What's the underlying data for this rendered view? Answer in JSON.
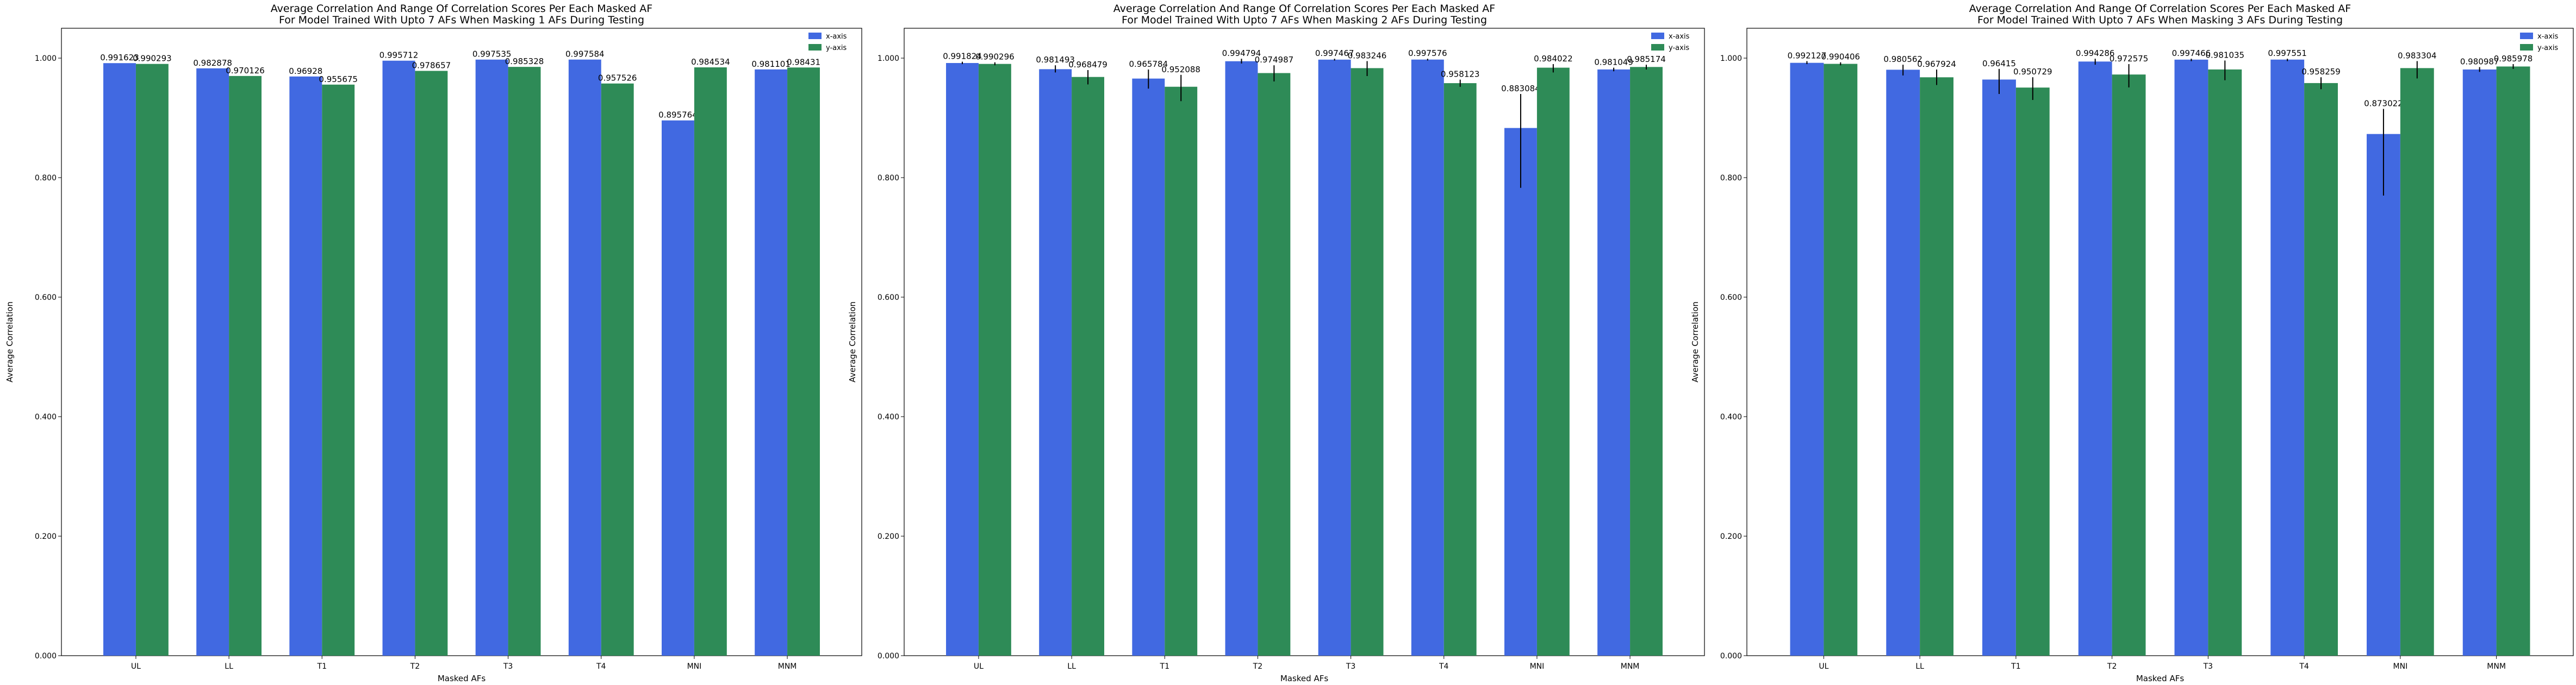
{
  "chart_data": [
    {
      "type": "bar",
      "title": [
        "Average Correlation And Range Of Correlation Scores Per Each Masked AF",
        "For Model Trained With Upto 7 AFs When Masking 1 AFs During Testing"
      ],
      "xlabel": "Masked AFs",
      "ylabel": "Average Correlation",
      "ylim": [
        0,
        1.05
      ],
      "yticks": [
        "0.000",
        "0.200",
        "0.400",
        "0.600",
        "0.800",
        "1.000"
      ],
      "ytick_values": [
        0,
        0.2,
        0.4,
        0.6,
        0.8,
        1.0
      ],
      "legend_position": "top-right",
      "categories": [
        "UL",
        "LL",
        "T1",
        "T2",
        "T3",
        "T4",
        "MNI",
        "MNM"
      ],
      "series": [
        {
          "name": "x-axis",
          "color": "#4169e1",
          "values": [
            0.991623,
            0.982878,
            0.96928,
            0.995712,
            0.997535,
            0.997584,
            0.895764,
            0.981101
          ],
          "labels": [
            "0.991623",
            "0.982878",
            "0.96928",
            "0.995712",
            "0.997535",
            "0.997584",
            "0.895764",
            "0.981101"
          ],
          "err_low": [
            0.991623,
            0.982878,
            0.96928,
            0.995712,
            0.997535,
            0.997584,
            0.895764,
            0.981101
          ],
          "err_high": [
            0.991623,
            0.982878,
            0.96928,
            0.995712,
            0.997535,
            0.997584,
            0.895764,
            0.981101
          ]
        },
        {
          "name": "y-axis",
          "color": "#2e8b57",
          "values": [
            0.990293,
            0.970126,
            0.955675,
            0.978657,
            0.985328,
            0.957526,
            0.984534,
            0.98431
          ],
          "labels": [
            "0.990293",
            "0.970126",
            "0.955675",
            "0.978657",
            "0.985328",
            "0.957526",
            "0.984534",
            "0.98431"
          ],
          "err_low": [
            0.990293,
            0.970126,
            0.955675,
            0.978657,
            0.985328,
            0.957526,
            0.984534,
            0.98431
          ],
          "err_high": [
            0.990293,
            0.970126,
            0.955675,
            0.978657,
            0.985328,
            0.957526,
            0.984534,
            0.98431
          ]
        }
      ]
    },
    {
      "type": "bar",
      "title": [
        "Average Correlation And Range Of Correlation Scores Per Each Masked AF",
        "For Model Trained With Upto 7 AFs When Masking 2 AFs During Testing"
      ],
      "xlabel": "Masked AFs",
      "ylabel": "Average Correlation",
      "ylim": [
        0,
        1.05
      ],
      "yticks": [
        "0.000",
        "0.200",
        "0.400",
        "0.600",
        "0.800",
        "1.000"
      ],
      "ytick_values": [
        0,
        0.2,
        0.4,
        0.6,
        0.8,
        1.0
      ],
      "legend_position": "top-right",
      "categories": [
        "UL",
        "LL",
        "T1",
        "T2",
        "T3",
        "T4",
        "MNI",
        "MNM"
      ],
      "series": [
        {
          "name": "x-axis",
          "color": "#4169e1",
          "values": [
            0.991824,
            0.981493,
            0.965784,
            0.994794,
            0.997467,
            0.997576,
            0.883084,
            0.981049
          ],
          "labels": [
            "0.991824",
            "0.981493",
            "0.965784",
            "0.994794",
            "0.997467",
            "0.997576",
            "0.883084",
            "0.981049"
          ],
          "err_low": [
            0.99,
            0.976,
            0.949,
            0.991,
            0.996,
            0.996,
            0.783,
            0.978
          ],
          "err_high": [
            0.994,
            0.988,
            0.981,
            0.999,
            0.999,
            0.999,
            0.94,
            0.984
          ]
        },
        {
          "name": "y-axis",
          "color": "#2e8b57",
          "values": [
            0.990296,
            0.968479,
            0.952088,
            0.974987,
            0.983246,
            0.958123,
            0.984022,
            0.985174
          ],
          "labels": [
            "0.990296",
            "0.968479",
            "0.952088",
            "0.974987",
            "0.983246",
            "0.958123",
            "0.984022",
            "0.985174"
          ],
          "err_low": [
            0.988,
            0.956,
            0.928,
            0.961,
            0.97,
            0.952,
            0.976,
            0.981
          ],
          "err_high": [
            0.993,
            0.98,
            0.972,
            0.988,
            0.995,
            0.964,
            0.99,
            0.989
          ]
        }
      ]
    },
    {
      "type": "bar",
      "title": [
        "Average Correlation And Range Of Correlation Scores Per Each Masked AF",
        "For Model Trained With Upto 7 AFs When Masking 3 AFs During Testing"
      ],
      "xlabel": "Masked AFs",
      "ylabel": "Average Correlation",
      "ylim": [
        0,
        1.05
      ],
      "yticks": [
        "0.000",
        "0.200",
        "0.400",
        "0.600",
        "0.800",
        "1.000"
      ],
      "ytick_values": [
        0,
        0.2,
        0.4,
        0.6,
        0.8,
        1.0
      ],
      "legend_position": "top-right",
      "categories": [
        "UL",
        "LL",
        "T1",
        "T2",
        "T3",
        "T4",
        "MNI",
        "MNM"
      ],
      "series": [
        {
          "name": "x-axis",
          "color": "#4169e1",
          "values": [
            0.992127,
            0.980562,
            0.96415,
            0.994286,
            0.997466,
            0.997551,
            0.873022,
            0.980987
          ],
          "labels": [
            "0.992127",
            "0.980562",
            "0.96415",
            "0.994286",
            "0.997466",
            "0.997551",
            "0.873022",
            "0.980987"
          ],
          "err_low": [
            0.99,
            0.971,
            0.94,
            0.989,
            0.995,
            0.995,
            0.77,
            0.977
          ],
          "err_high": [
            0.995,
            0.989,
            0.982,
            0.999,
            0.999,
            0.999,
            0.915,
            0.985
          ]
        },
        {
          "name": "y-axis",
          "color": "#2e8b57",
          "values": [
            0.990406,
            0.967924,
            0.950729,
            0.972575,
            0.981035,
            0.958259,
            0.983304,
            0.985978
          ],
          "labels": [
            "0.990406",
            "0.967924",
            "0.950729",
            "0.972575",
            "0.981035",
            "0.958259",
            "0.983304",
            "0.985978"
          ],
          "err_low": [
            0.988,
            0.955,
            0.93,
            0.951,
            0.963,
            0.948,
            0.966,
            0.982
          ],
          "err_high": [
            0.993,
            0.981,
            0.968,
            0.99,
            0.996,
            0.968,
            0.995,
            0.99
          ]
        }
      ]
    }
  ]
}
